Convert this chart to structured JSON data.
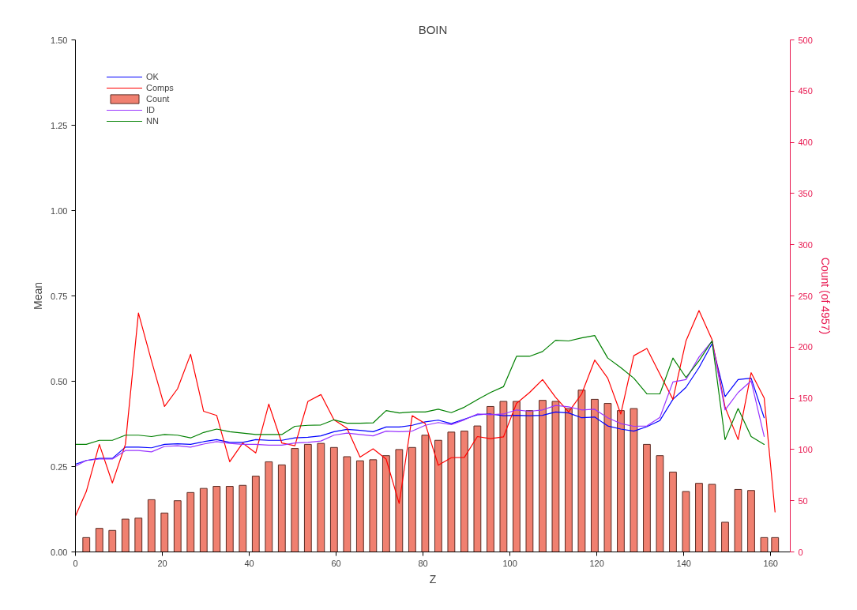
{
  "chart_data": {
    "type": "line",
    "title": "BOIN",
    "xlabel": "Z",
    "ylabel": "Mean",
    "y2label": "Count (of 4957)",
    "xlim": [
      0,
      164.5
    ],
    "xticks": [
      0,
      20,
      40,
      60,
      80,
      100,
      120,
      140,
      160
    ],
    "ylim": [
      0,
      1.5
    ],
    "yticks": [
      {
        "value": 0,
        "label": "0.00"
      },
      {
        "value": 0.25,
        "label": "0.25"
      },
      {
        "value": 0.5,
        "label": "0.50"
      },
      {
        "value": 0.75,
        "label": "0.75"
      },
      {
        "value": 1,
        "label": "1.00"
      },
      {
        "value": 1.25,
        "label": "1.25"
      },
      {
        "value": 1.5,
        "label": "1.50"
      }
    ],
    "y2lim": [
      0,
      500
    ],
    "y2ticks": [
      0,
      50,
      100,
      150,
      200,
      250,
      300,
      350,
      400,
      450,
      500
    ],
    "grid": false,
    "legend": "top left",
    "marker": "none",
    "line_style": "solid",
    "x": [
      0,
      2.5,
      5.5,
      8.5,
      11.5,
      14.5,
      17.5,
      20.5,
      23.5,
      26.5,
      29.5,
      32.5,
      35.5,
      38.5,
      41.5,
      44.5,
      47.5,
      50.5,
      53.5,
      56.5,
      59.5,
      62.5,
      65.5,
      68.5,
      71.5,
      74.5,
      77.5,
      80.5,
      83.5,
      86.5,
      89.5,
      92.5,
      95.5,
      98.5,
      101.5,
      104.5,
      107.5,
      110.5,
      113.5,
      116.5,
      119.5,
      122.5,
      125.5,
      128.5,
      131.5,
      134.5,
      137.5,
      140.5,
      143.5,
      146.5,
      149.5,
      152.5,
      155.5,
      158.5
    ],
    "series": [
      {
        "name": "OK",
        "color": "#0000ff",
        "values": [
          0.257,
          0.268,
          0.274,
          0.274,
          0.307,
          0.307,
          0.305,
          0.315,
          0.317,
          0.315,
          0.323,
          0.329,
          0.321,
          0.321,
          0.329,
          0.327,
          0.327,
          0.334,
          0.336,
          0.34,
          0.352,
          0.359,
          0.356,
          0.352,
          0.366,
          0.366,
          0.371,
          0.381,
          0.386,
          0.376,
          0.389,
          0.402,
          0.404,
          0.399,
          0.4,
          0.399,
          0.4,
          0.41,
          0.407,
          0.393,
          0.395,
          0.369,
          0.36,
          0.354,
          0.367,
          0.385,
          0.447,
          0.482,
          0.54,
          0.61,
          0.455,
          0.505,
          0.509,
          0.393
        ]
      },
      {
        "name": "Comps",
        "color": "#ff0000",
        "x": [
          0,
          2.5,
          5.5,
          8.5,
          11.5,
          14.5,
          17.5,
          20.5,
          23.5,
          26.5,
          29.5,
          32.5,
          35.5,
          38.5,
          41.5,
          44.5,
          47.5,
          50.5,
          53.5,
          56.5,
          59.5,
          62.5,
          65.5,
          68.5,
          71.5,
          74.5,
          77.5,
          80.5,
          83.5,
          86.5,
          89.5,
          92.5,
          95.5,
          98.5,
          101.5,
          104.5,
          107.5,
          110.5,
          113.5,
          116.5,
          119.5,
          122.5,
          125.5,
          128.5,
          131.5,
          134.5,
          137.5,
          140.5,
          143.5,
          146.5,
          149.5,
          152.5,
          155.5,
          158.5,
          161
        ],
        "values": [
          0.105,
          0.177,
          0.315,
          0.202,
          0.315,
          0.7,
          0.56,
          0.426,
          0.478,
          0.579,
          0.412,
          0.4,
          0.264,
          0.319,
          0.29,
          0.433,
          0.319,
          0.311,
          0.441,
          0.461,
          0.387,
          0.362,
          0.278,
          0.302,
          0.272,
          0.142,
          0.399,
          0.376,
          0.254,
          0.276,
          0.277,
          0.338,
          0.332,
          0.337,
          0.435,
          0.467,
          0.505,
          0.453,
          0.41,
          0.463,
          0.562,
          0.509,
          0.404,
          0.575,
          0.596,
          0.521,
          0.447,
          0.618,
          0.707,
          0.622,
          0.424,
          0.329,
          0.525,
          0.451,
          0.117
        ]
      },
      {
        "name": "Count",
        "type": "bar",
        "axis": "y2",
        "color": "#f08070",
        "x": [
          2.5,
          5.5,
          8.5,
          11.5,
          14.5,
          17.5,
          20.5,
          23.5,
          26.5,
          29.5,
          32.5,
          35.5,
          38.5,
          41.5,
          44.5,
          47.5,
          50.5,
          53.5,
          56.5,
          59.5,
          62.5,
          65.5,
          68.5,
          71.5,
          74.5,
          77.5,
          80.5,
          83.5,
          86.5,
          89.5,
          92.5,
          95.5,
          98.5,
          101.5,
          104.5,
          107.5,
          110.5,
          113.5,
          116.5,
          119.5,
          122.5,
          125.5,
          128.5,
          131.5,
          134.5,
          137.5,
          140.5,
          143.5,
          146.5,
          149.5,
          152.5,
          155.5,
          158.5,
          161
        ],
        "values": [
          14,
          23,
          21,
          32,
          33,
          51,
          38,
          50,
          58,
          62,
          64,
          64,
          65,
          74,
          88,
          85,
          101,
          105,
          106,
          102,
          93,
          89,
          90,
          94,
          100,
          102,
          114,
          109,
          117,
          118,
          123,
          142,
          147,
          147,
          138,
          148,
          147,
          140,
          158,
          149,
          145,
          138,
          140,
          105,
          94,
          78,
          59,
          67,
          66,
          29,
          61,
          60,
          14,
          14
        ]
      },
      {
        "name": "ID",
        "color": "#9933ff",
        "values": [
          0.251,
          0.268,
          0.272,
          0.272,
          0.297,
          0.297,
          0.293,
          0.309,
          0.311,
          0.307,
          0.316,
          0.323,
          0.318,
          0.315,
          0.315,
          0.313,
          0.313,
          0.319,
          0.321,
          0.325,
          0.342,
          0.348,
          0.344,
          0.34,
          0.354,
          0.352,
          0.354,
          0.371,
          0.379,
          0.373,
          0.387,
          0.404,
          0.402,
          0.404,
          0.416,
          0.412,
          0.416,
          0.429,
          0.425,
          0.416,
          0.418,
          0.393,
          0.376,
          0.368,
          0.369,
          0.394,
          0.498,
          0.505,
          0.571,
          0.618,
          0.416,
          0.467,
          0.501,
          0.338
        ]
      },
      {
        "name": "NN",
        "color": "#008000",
        "values": [
          0.315,
          0.315,
          0.327,
          0.327,
          0.342,
          0.342,
          0.338,
          0.344,
          0.342,
          0.334,
          0.35,
          0.36,
          0.352,
          0.348,
          0.344,
          0.344,
          0.344,
          0.368,
          0.371,
          0.372,
          0.387,
          0.377,
          0.377,
          0.378,
          0.414,
          0.407,
          0.41,
          0.41,
          0.418,
          0.408,
          0.424,
          0.446,
          0.467,
          0.484,
          0.573,
          0.573,
          0.587,
          0.62,
          0.618,
          0.627,
          0.634,
          0.568,
          0.54,
          0.509,
          0.463,
          0.463,
          0.568,
          0.511,
          0.56,
          0.618,
          0.329,
          0.42,
          0.338,
          0.315
        ]
      }
    ]
  }
}
